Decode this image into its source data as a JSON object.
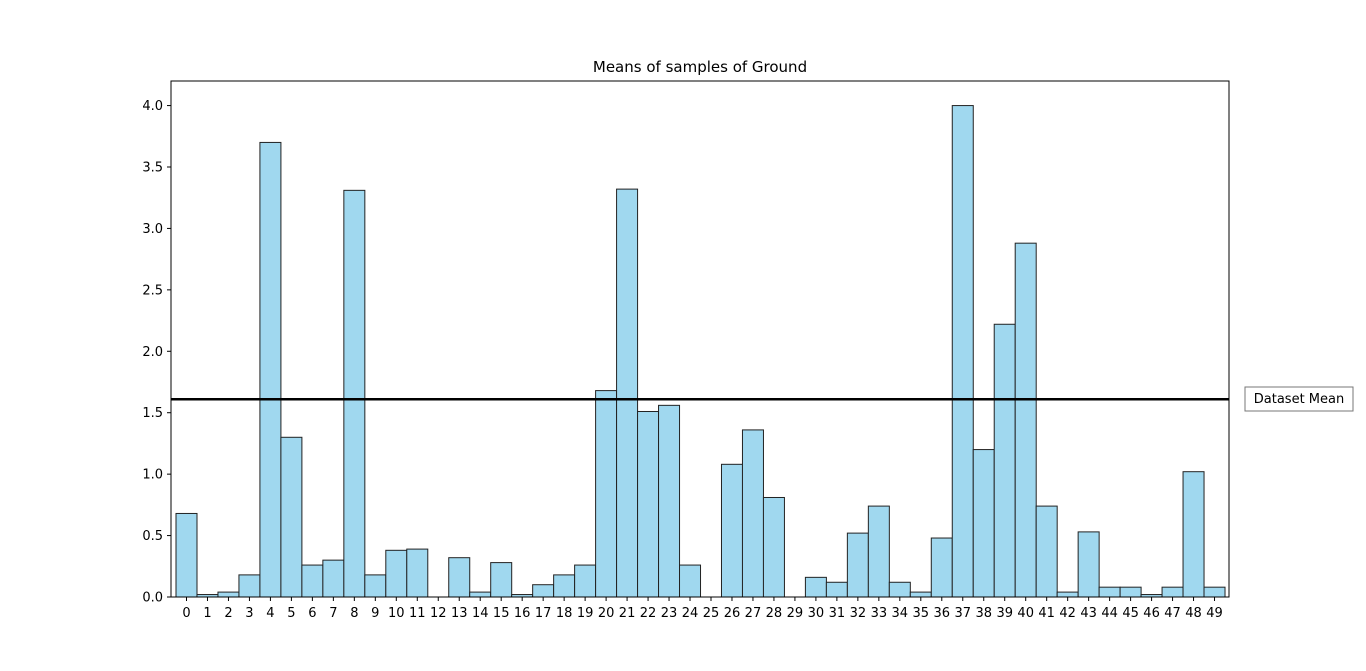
{
  "chart_data": {
    "type": "bar",
    "title": "Means of samples of Ground",
    "xlabel": "",
    "ylabel": "",
    "categories": [
      "0",
      "1",
      "2",
      "3",
      "4",
      "5",
      "6",
      "7",
      "8",
      "9",
      "10",
      "11",
      "12",
      "13",
      "14",
      "15",
      "16",
      "17",
      "18",
      "19",
      "20",
      "21",
      "22",
      "23",
      "24",
      "25",
      "26",
      "27",
      "28",
      "29",
      "30",
      "31",
      "32",
      "33",
      "34",
      "35",
      "36",
      "37",
      "38",
      "39",
      "40",
      "41",
      "42",
      "43",
      "44",
      "45",
      "46",
      "47",
      "48",
      "49"
    ],
    "values": [
      0.68,
      0.02,
      0.04,
      0.18,
      3.7,
      1.3,
      0.26,
      0.3,
      3.31,
      0.18,
      0.38,
      0.39,
      0.0,
      0.32,
      0.04,
      0.28,
      0.02,
      0.1,
      0.18,
      0.26,
      1.68,
      3.32,
      1.51,
      1.56,
      0.26,
      0.0,
      1.08,
      1.36,
      0.81,
      0.0,
      0.16,
      0.12,
      0.52,
      0.74,
      0.12,
      0.04,
      0.48,
      4.0,
      1.2,
      2.22,
      2.88,
      0.74,
      0.04,
      0.53,
      0.08,
      0.08,
      0.02,
      0.08,
      1.02,
      0.08
    ],
    "ylim": [
      0,
      4.2
    ],
    "yticks": [
      "0.0",
      "0.5",
      "1.0",
      "1.5",
      "2.0",
      "2.5",
      "3.0",
      "3.5",
      "4.0"
    ],
    "grid": false,
    "bar_color": "#a0d8ef",
    "bar_edge_color": "#222222",
    "reference_line": {
      "label": "Dataset Mean",
      "value": 1.61,
      "color": "#000000"
    },
    "legend_placement": "right"
  }
}
